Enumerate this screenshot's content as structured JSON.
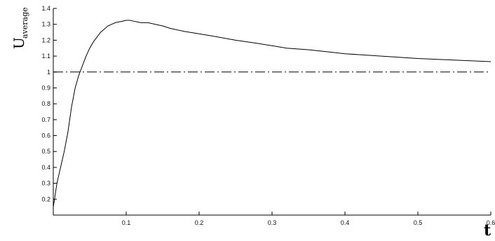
{
  "chart_data": {
    "type": "line",
    "title": "",
    "xlabel": "t",
    "ylabel_main": "U",
    "ylabel_sub": "average",
    "xlim": [
      0.0,
      0.6
    ],
    "ylim": [
      0.1,
      1.4
    ],
    "xticks": [
      0.1,
      0.2,
      0.3,
      0.4,
      0.5,
      0.6
    ],
    "xtick_labels": [
      "0.1",
      "0.2",
      "0.3",
      "0.4",
      "0.5",
      "0.6"
    ],
    "yticks": [
      0.2,
      0.3,
      0.4,
      0.5,
      0.6,
      0.7,
      0.8,
      0.9,
      1.0,
      1.1,
      1.2,
      1.3,
      1.4
    ],
    "ytick_labels": [
      "0.2",
      "0.3",
      "0.4",
      "0.5",
      "0.6",
      "0.7",
      "0.8",
      "0.9",
      "1",
      "1.1",
      "1.2",
      "1.3",
      "1.4"
    ],
    "grid": false,
    "series": [
      {
        "style": "solid",
        "color": "#000000",
        "x": [
          0.0,
          0.005,
          0.01,
          0.015,
          0.02,
          0.025,
          0.03,
          0.035,
          0.04,
          0.045,
          0.05,
          0.055,
          0.06,
          0.065,
          0.07,
          0.075,
          0.08,
          0.085,
          0.09,
          0.095,
          0.1,
          0.105,
          0.11,
          0.115,
          0.12,
          0.13,
          0.14,
          0.15,
          0.16,
          0.18,
          0.2,
          0.22,
          0.25,
          0.28,
          0.3,
          0.32,
          0.35,
          0.38,
          0.4,
          0.45,
          0.5,
          0.55,
          0.6
        ],
        "y": [
          0.15,
          0.3,
          0.4,
          0.5,
          0.62,
          0.78,
          0.9,
          0.98,
          1.04,
          1.1,
          1.15,
          1.19,
          1.22,
          1.25,
          1.27,
          1.29,
          1.3,
          1.31,
          1.315,
          1.32,
          1.325,
          1.325,
          1.32,
          1.315,
          1.31,
          1.31,
          1.3,
          1.29,
          1.275,
          1.255,
          1.24,
          1.225,
          1.2,
          1.18,
          1.165,
          1.15,
          1.14,
          1.125,
          1.115,
          1.1,
          1.085,
          1.075,
          1.065
        ]
      },
      {
        "style": "dash-dot",
        "color": "#000000",
        "x": [
          0.0,
          0.6
        ],
        "y": [
          1.0,
          1.0
        ]
      }
    ]
  }
}
